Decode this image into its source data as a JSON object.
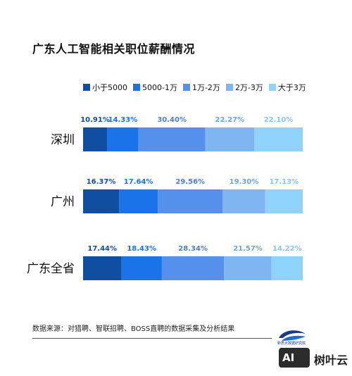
{
  "title": "广东人工智能相关职位薪酬情况",
  "chart_data": {
    "type": "bar",
    "stacked": true,
    "orientation": "horizontal",
    "categories": [
      "深圳",
      "广州",
      "广东全省"
    ],
    "series": [
      {
        "name": "小于5000",
        "color": "#0f4ea0",
        "label_color": "#0f4ea0",
        "values": [
          10.91,
          16.37,
          17.44
        ],
        "labels": [
          "10.91%",
          "16.37%",
          "17.44%"
        ]
      },
      {
        "name": "5000-1万",
        "color": "#1a73e8",
        "label_color": "#1a73e8",
        "values": [
          14.33,
          17.64,
          18.43
        ],
        "labels": [
          "14.33%",
          "17.64%",
          "18.43%"
        ]
      },
      {
        "name": "1万-2万",
        "color": "#5591ec",
        "label_color": "#4a7fcc",
        "values": [
          30.4,
          29.56,
          28.34
        ],
        "labels": [
          "30.40%",
          "29.56%",
          "28.34%"
        ]
      },
      {
        "name": "2万-3万",
        "color": "#7fb6f2",
        "label_color": "#6aa5de",
        "values": [
          22.27,
          19.3,
          21.57
        ],
        "labels": [
          "22.27%",
          "19.30%",
          "21.57%"
        ]
      },
      {
        "name": "大于3万",
        "color": "#8fd3fa",
        "label_color": "#86c8ee",
        "values": [
          22.1,
          17.13,
          14.22
        ],
        "labels": [
          "22.10%",
          "17.13%",
          "14.22%"
        ]
      }
    ],
    "xlim": [
      0,
      100
    ],
    "legend_position": "top",
    "grid": false
  },
  "source": "数据来源：对猎聘、智联招聘、BOSS直聘的数据采集及分析结果",
  "brand": {
    "sub": "新质大数据研究院",
    "badge": "AI",
    "badge_text": "树叶云"
  }
}
